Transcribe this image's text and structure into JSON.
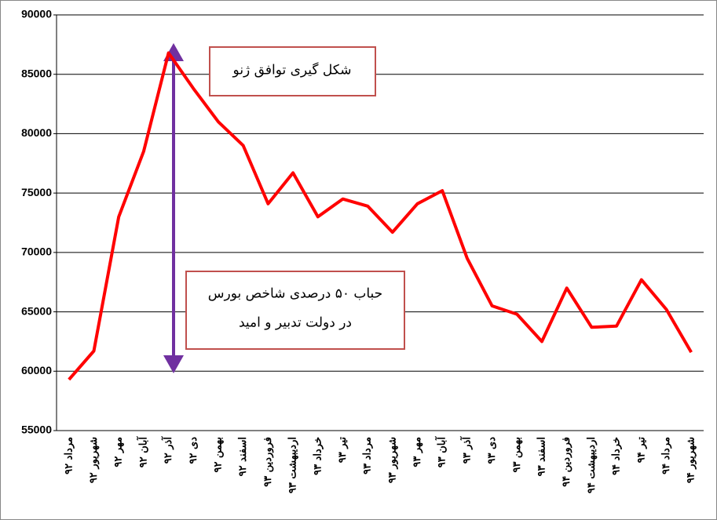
{
  "chart_data": {
    "type": "line",
    "categories": [
      "مرداد ۹۲",
      "شهریور ۹۲",
      "مهر ۹۲",
      "آبان ۹۲",
      "آذر ۹۲",
      "دی ۹۲",
      "بهمن ۹۲",
      "اسفند ۹۲",
      "فروردین ۹۳",
      "اردیبهشت ۹۳",
      "خرداد ۹۳",
      "تیر ۹۳",
      "مرداد ۹۳",
      "شهریور ۹۳",
      "مهر ۹۳",
      "آبان ۹۳",
      "آذر ۹۳",
      "دی ۹۳",
      "بهمن ۹۳",
      "اسفند ۹۳",
      "فروردین ۹۴",
      "اردیبهشت ۹۴",
      "خرداد ۹۴",
      "تیر ۹۴",
      "مرداد ۹۴",
      "شهریور ۹۴"
    ],
    "values": [
      59300,
      61700,
      73000,
      78500,
      86800,
      83800,
      81000,
      79000,
      74100,
      76700,
      73000,
      74500,
      73900,
      71700,
      74100,
      75200,
      69500,
      65500,
      64800,
      62500,
      67000,
      63700,
      63800,
      67700,
      65200,
      61600
    ],
    "color": "#ff0000",
    "ylim": [
      55000,
      90000
    ],
    "yticks": [
      55000,
      60000,
      65000,
      70000,
      75000,
      80000,
      85000,
      90000
    ],
    "grid": true,
    "annotations": [
      "شکل گیری توافق ژنو",
      "حباب ۵۰ درصدی شاخص بورس",
      "در دولت تدبیر و امید"
    ]
  }
}
